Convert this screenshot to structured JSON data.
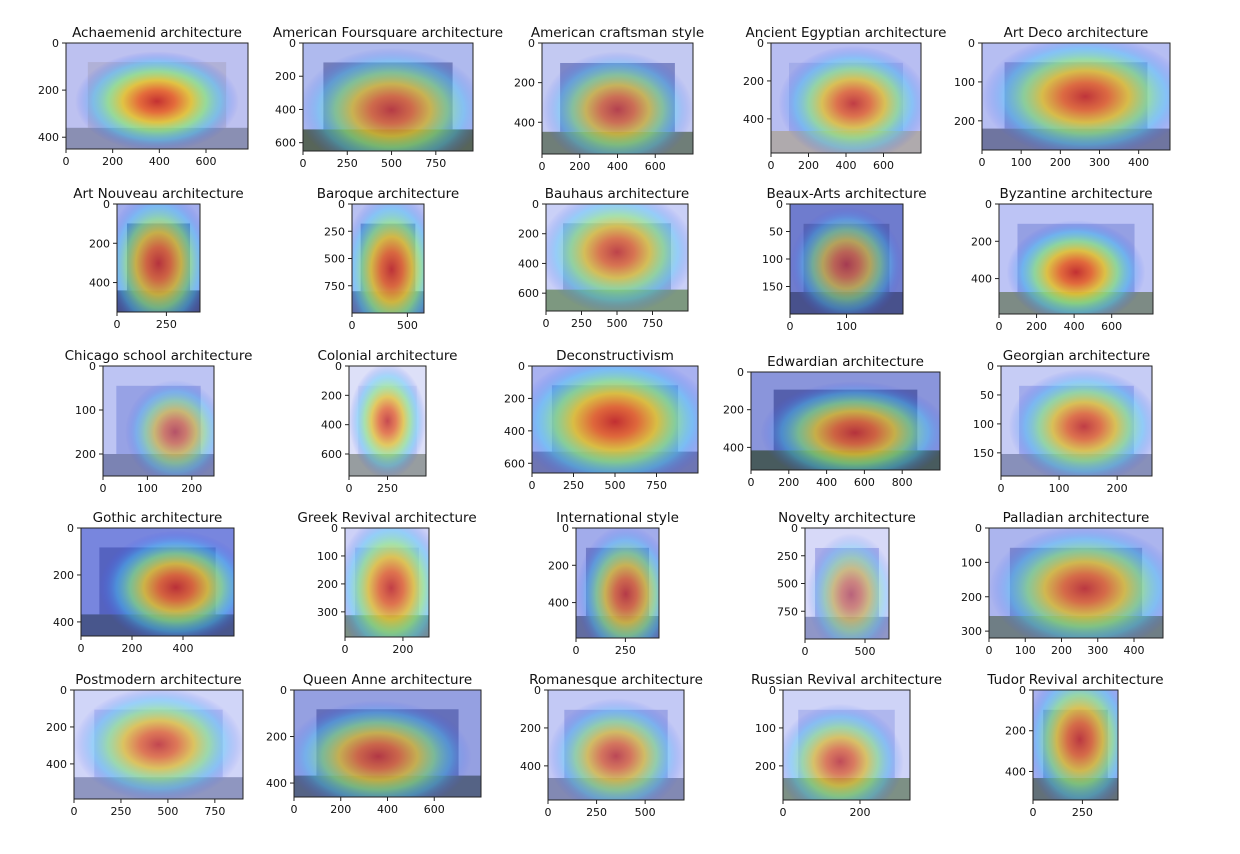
{
  "figure": {
    "background": "#ffffff",
    "colormap": "jet",
    "overlay_tint": "#8890e8"
  },
  "chart_data": [
    {
      "type": "heatmap",
      "title": "Achaemenid architecture",
      "xticks": [
        "0",
        "200",
        "400",
        "600"
      ],
      "yticks": [
        "0",
        "200",
        "400"
      ],
      "xlim": [
        0,
        780
      ],
      "ylim": [
        0,
        450
      ],
      "image": {
        "photo": "#b9b9d4",
        "sky": "#c8ccf2",
        "ground": "#8a8fa8"
      },
      "heat": [
        {
          "cx": 0.5,
          "cy": 0.55,
          "r": 0.45,
          "level": 1.0
        }
      ]
    },
    {
      "type": "heatmap",
      "title": "American Foursquare architecture",
      "xticks": [
        "0",
        "250",
        "500",
        "750"
      ],
      "yticks": [
        "0",
        "200",
        "400",
        "600"
      ],
      "xlim": [
        0,
        960
      ],
      "ylim": [
        0,
        650
      ],
      "image": {
        "photo": "#6f7bb0",
        "sky": "#b8c4ef",
        "ground": "#4c5c3a"
      },
      "heat": [
        {
          "cx": 0.52,
          "cy": 0.62,
          "r": 0.55,
          "level": 0.85
        }
      ]
    },
    {
      "type": "heatmap",
      "title": "American craftsman style",
      "xticks": [
        "0",
        "200",
        "400",
        "600"
      ],
      "yticks": [
        "0",
        "200",
        "400"
      ],
      "xlim": [
        0,
        800
      ],
      "ylim": [
        0,
        560
      ],
      "image": {
        "photo": "#7a86c0",
        "sky": "#d0d6f5",
        "ground": "#6a7a60"
      },
      "heat": [
        {
          "cx": 0.5,
          "cy": 0.6,
          "r": 0.5,
          "level": 0.8
        }
      ]
    },
    {
      "type": "heatmap",
      "title": "Ancient Egyptian architecture",
      "xticks": [
        "0",
        "200",
        "400",
        "600"
      ],
      "yticks": [
        "0",
        "200",
        "400"
      ],
      "xlim": [
        0,
        800
      ],
      "ylim": [
        0,
        580
      ],
      "image": {
        "photo": "#a9b2ea",
        "sky": "#c2c8f5",
        "ground": "#b8b0a0"
      },
      "heat": [
        {
          "cx": 0.55,
          "cy": 0.55,
          "r": 0.5,
          "level": 0.9
        }
      ]
    },
    {
      "type": "heatmap",
      "title": "Art Deco architecture",
      "xticks": [
        "0",
        "100",
        "200",
        "300",
        "400"
      ],
      "yticks": [
        "0",
        "100",
        "200"
      ],
      "xlim": [
        0,
        480
      ],
      "ylim": [
        0,
        275
      ],
      "image": {
        "photo": "#8a92d0",
        "sky": "#c0c8f5",
        "ground": "#6a7090"
      },
      "heat": [
        {
          "cx": 0.55,
          "cy": 0.5,
          "r": 0.55,
          "level": 0.95
        }
      ]
    },
    {
      "type": "heatmap",
      "title": "Art Nouveau architecture",
      "xticks": [
        "0",
        "250"
      ],
      "yticks": [
        "0",
        "200",
        "400"
      ],
      "xlim": [
        0,
        420
      ],
      "ylim": [
        0,
        550
      ],
      "image": {
        "photo": "#4a58a8",
        "sky": "#a8b4ee",
        "ground": "#3a4270"
      },
      "heat": [
        {
          "cx": 0.5,
          "cy": 0.55,
          "r": 0.5,
          "level": 0.9
        }
      ]
    },
    {
      "type": "heatmap",
      "title": "Baroque architecture",
      "xticks": [
        "0",
        "500"
      ],
      "yticks": [
        "0",
        "250",
        "500",
        "750"
      ],
      "xlim": [
        0,
        650
      ],
      "ylim": [
        0,
        1000
      ],
      "image": {
        "photo": "#6c78bc",
        "sky": "#c4ccf4",
        "ground": "#5a6488"
      },
      "heat": [
        {
          "cx": 0.55,
          "cy": 0.6,
          "r": 0.45,
          "level": 0.95
        }
      ]
    },
    {
      "type": "heatmap",
      "title": "Bauhaus architecture",
      "xticks": [
        "0",
        "250",
        "500",
        "750"
      ],
      "yticks": [
        "0",
        "200",
        "400",
        "600"
      ],
      "xlim": [
        0,
        1000
      ],
      "ylim": [
        0,
        720
      ],
      "image": {
        "photo": "#a0b0d0",
        "sky": "#d8defa",
        "ground": "#7a9a6a"
      },
      "heat": [
        {
          "cx": 0.5,
          "cy": 0.45,
          "r": 0.55,
          "level": 0.85
        }
      ]
    },
    {
      "type": "heatmap",
      "title": "Beaux-Arts architecture",
      "xticks": [
        "0",
        "100"
      ],
      "yticks": [
        "0",
        "50",
        "100",
        "150"
      ],
      "xlim": [
        0,
        200
      ],
      "ylim": [
        0,
        200
      ],
      "image": {
        "photo": "#4c5aa8",
        "sky": "#6a78c8",
        "ground": "#3a4478"
      },
      "heat": [
        {
          "cx": 0.5,
          "cy": 0.55,
          "r": 0.5,
          "level": 0.75
        }
      ]
    },
    {
      "type": "heatmap",
      "title": "Byzantine architecture",
      "xticks": [
        "0",
        "200",
        "400",
        "600"
      ],
      "yticks": [
        "0",
        "200",
        "400"
      ],
      "xlim": [
        0,
        820
      ],
      "ylim": [
        0,
        590
      ],
      "image": {
        "photo": "#98a4e2",
        "sky": "#c8d0f8",
        "ground": "#7a8a70"
      },
      "heat": [
        {
          "cx": 0.5,
          "cy": 0.62,
          "r": 0.45,
          "level": 1.0
        }
      ]
    },
    {
      "type": "heatmap",
      "title": "Chicago school architecture",
      "xticks": [
        "0",
        "100",
        "200"
      ],
      "yticks": [
        "0",
        "100",
        "200"
      ],
      "xlim": [
        0,
        250
      ],
      "ylim": [
        0,
        250
      ],
      "image": {
        "photo": "#9aa6e4",
        "sky": "#c8d0f6",
        "ground": "#7880a8"
      },
      "heat": [
        {
          "cx": 0.65,
          "cy": 0.6,
          "r": 0.45,
          "level": 0.7
        }
      ]
    },
    {
      "type": "heatmap",
      "title": "Colonial architecture",
      "xticks": [
        "0",
        "250"
      ],
      "yticks": [
        "0",
        "200",
        "400",
        "600"
      ],
      "xlim": [
        0,
        500
      ],
      "ylim": [
        0,
        750
      ],
      "image": {
        "photo": "#dfe2f6",
        "sky": "#f0f2fc",
        "ground": "#9aa090"
      },
      "heat": [
        {
          "cx": 0.5,
          "cy": 0.5,
          "r": 0.35,
          "level": 0.85
        }
      ]
    },
    {
      "type": "heatmap",
      "title": "Deconstructivism",
      "xticks": [
        "0",
        "250",
        "500",
        "750"
      ],
      "yticks": [
        "0",
        "200",
        "400",
        "600"
      ],
      "xlim": [
        0,
        1000
      ],
      "ylim": [
        0,
        660
      ],
      "image": {
        "photo": "#7c88d4",
        "sky": "#b0baf2",
        "ground": "#6870a8"
      },
      "heat": [
        {
          "cx": 0.5,
          "cy": 0.52,
          "r": 0.6,
          "level": 1.0
        }
      ]
    },
    {
      "type": "heatmap",
      "title": "Edwardian architecture",
      "xticks": [
        "0",
        "200",
        "400",
        "600",
        "800"
      ],
      "yticks": [
        "0",
        "200",
        "400"
      ],
      "xlim": [
        0,
        1000
      ],
      "ylim": [
        0,
        520
      ],
      "image": {
        "photo": "#4a56a0",
        "sky": "#8a96d8",
        "ground": "#3a5040"
      },
      "heat": [
        {
          "cx": 0.55,
          "cy": 0.62,
          "r": 0.5,
          "level": 0.9
        }
      ]
    },
    {
      "type": "heatmap",
      "title": "Georgian architecture",
      "xticks": [
        "0",
        "100",
        "200"
      ],
      "yticks": [
        "0",
        "50",
        "100",
        "150"
      ],
      "xlim": [
        0,
        260
      ],
      "ylim": [
        0,
        190
      ],
      "image": {
        "photo": "#a8b2ec",
        "sky": "#d4daf8",
        "ground": "#8890b0"
      },
      "heat": [
        {
          "cx": 0.55,
          "cy": 0.55,
          "r": 0.5,
          "level": 0.9
        }
      ]
    },
    {
      "type": "heatmap",
      "title": "Gothic architecture",
      "xticks": [
        "0",
        "200",
        "400"
      ],
      "yticks": [
        "0",
        "200",
        "400"
      ],
      "xlim": [
        0,
        600
      ],
      "ylim": [
        0,
        460
      ],
      "image": {
        "photo": "#4a5ab8",
        "sky": "#7484dc",
        "ground": "#3a4a78"
      },
      "heat": [
        {
          "cx": 0.62,
          "cy": 0.55,
          "r": 0.5,
          "level": 0.95
        }
      ]
    },
    {
      "type": "heatmap",
      "title": "Greek Revival architecture",
      "xticks": [
        "0",
        "200"
      ],
      "yticks": [
        "0",
        "100",
        "200",
        "300"
      ],
      "xlim": [
        0,
        290
      ],
      "ylim": [
        0,
        390
      ],
      "image": {
        "photo": "#b8bff0",
        "sky": "#dce0fa",
        "ground": "#7a9070"
      },
      "heat": [
        {
          "cx": 0.55,
          "cy": 0.55,
          "r": 0.5,
          "level": 0.9
        }
      ]
    },
    {
      "type": "heatmap",
      "title": "International style",
      "xticks": [
        "0",
        "250"
      ],
      "yticks": [
        "0",
        "200",
        "400"
      ],
      "xlim": [
        0,
        420
      ],
      "ylim": [
        0,
        590
      ],
      "image": {
        "photo": "#6c78c0",
        "sky": "#a8b2ec",
        "ground": "#5a6490"
      },
      "heat": [
        {
          "cx": 0.6,
          "cy": 0.6,
          "r": 0.45,
          "level": 0.85
        }
      ]
    },
    {
      "type": "heatmap",
      "title": "Novelty architecture",
      "xticks": [
        "0",
        "500"
      ],
      "yticks": [
        "0",
        "250",
        "500",
        "750"
      ],
      "xlim": [
        0,
        700
      ],
      "ylim": [
        0,
        1000
      ],
      "image": {
        "photo": "#b0b4e8",
        "sky": "#e8eafc",
        "ground": "#9098c0"
      },
      "heat": [
        {
          "cx": 0.55,
          "cy": 0.6,
          "r": 0.4,
          "level": 0.6
        }
      ]
    },
    {
      "type": "heatmap",
      "title": "Palladian architecture",
      "xticks": [
        "0",
        "100",
        "200",
        "300",
        "400"
      ],
      "yticks": [
        "0",
        "100",
        "200",
        "300"
      ],
      "xlim": [
        0,
        480
      ],
      "ylim": [
        0,
        320
      ],
      "image": {
        "photo": "#7c88c8",
        "sky": "#b4bef0",
        "ground": "#6a7a70"
      },
      "heat": [
        {
          "cx": 0.55,
          "cy": 0.55,
          "r": 0.55,
          "level": 0.9
        }
      ]
    },
    {
      "type": "heatmap",
      "title": "Postmodern architecture",
      "xticks": [
        "0",
        "250",
        "500",
        "750"
      ],
      "yticks": [
        "0",
        "200",
        "400"
      ],
      "xlim": [
        0,
        900
      ],
      "ylim": [
        0,
        590
      ],
      "image": {
        "photo": "#c0c6f2",
        "sky": "#e0e4fc",
        "ground": "#9098b8"
      },
      "heat": [
        {
          "cx": 0.5,
          "cy": 0.5,
          "r": 0.5,
          "level": 0.85
        }
      ]
    },
    {
      "type": "heatmap",
      "title": "Queen Anne architecture",
      "xticks": [
        "0",
        "200",
        "400",
        "600"
      ],
      "yticks": [
        "0",
        "200",
        "400"
      ],
      "xlim": [
        0,
        800
      ],
      "ylim": [
        0,
        460
      ],
      "image": {
        "photo": "#5c68b0",
        "sky": "#98a4e0",
        "ground": "#4a5a70"
      },
      "heat": [
        {
          "cx": 0.45,
          "cy": 0.62,
          "r": 0.5,
          "level": 0.85
        }
      ]
    },
    {
      "type": "heatmap",
      "title": "Romanesque architecture",
      "xticks": [
        "0",
        "250",
        "500"
      ],
      "yticks": [
        "0",
        "200",
        "400"
      ],
      "xlim": [
        0,
        700
      ],
      "ylim": [
        0,
        580
      ],
      "image": {
        "photo": "#a0aae6",
        "sky": "#d0d6f8",
        "ground": "#8088a8"
      },
      "heat": [
        {
          "cx": 0.5,
          "cy": 0.6,
          "r": 0.5,
          "level": 0.8
        }
      ]
    },
    {
      "type": "heatmap",
      "title": "Russian Revival architecture",
      "xticks": [
        "0",
        "200"
      ],
      "yticks": [
        "0",
        "100",
        "200"
      ],
      "xlim": [
        0,
        330
      ],
      "ylim": [
        0,
        290
      ],
      "image": {
        "photo": "#b8c0f0",
        "sky": "#dde2fa",
        "ground": "#7a9070"
      },
      "heat": [
        {
          "cx": 0.45,
          "cy": 0.65,
          "r": 0.5,
          "level": 0.8
        }
      ]
    },
    {
      "type": "heatmap",
      "title": "Tudor Revival architecture",
      "xticks": [
        "0",
        "250"
      ],
      "yticks": [
        "0",
        "200",
        "400"
      ],
      "xlim": [
        0,
        430
      ],
      "ylim": [
        0,
        540
      ],
      "image": {
        "photo": "#7a86c8",
        "sky": "#b0baf0",
        "ground": "#5a6a60"
      },
      "heat": [
        {
          "cx": 0.55,
          "cy": 0.45,
          "r": 0.5,
          "level": 0.9
        }
      ]
    }
  ]
}
